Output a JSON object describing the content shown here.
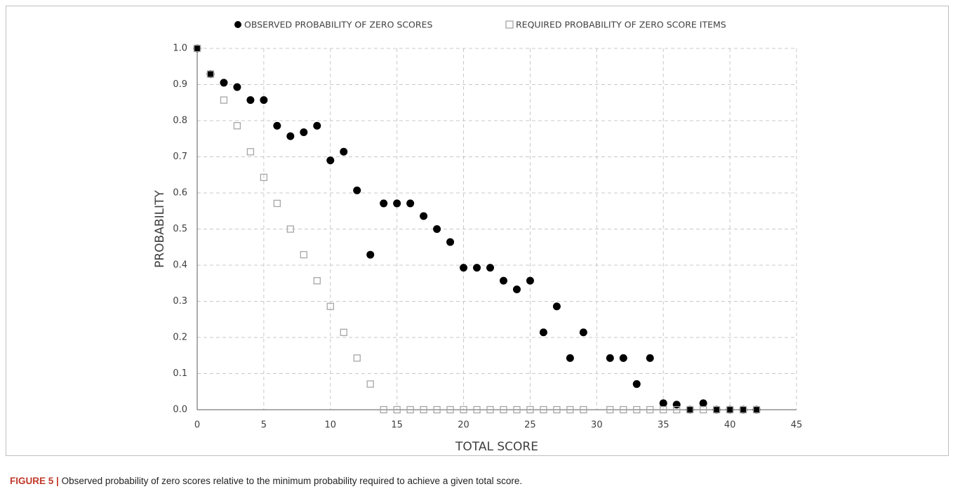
{
  "chart_data": {
    "type": "scatter",
    "x": [
      0,
      1,
      2,
      3,
      4,
      5,
      6,
      7,
      8,
      9,
      10,
      11,
      12,
      13,
      14,
      15,
      16,
      17,
      18,
      19,
      20,
      21,
      22,
      23,
      24,
      25,
      26,
      27,
      28,
      29,
      31,
      32,
      33,
      34,
      35,
      36,
      37,
      38,
      39,
      40,
      41,
      42
    ],
    "series": [
      {
        "name": "OBSERVED PROBABILITY OF ZERO SCORES",
        "color": "#000000",
        "marker": "circle",
        "values": [
          1.0,
          0.929,
          0.905,
          0.893,
          0.857,
          0.857,
          0.786,
          0.757,
          0.768,
          0.786,
          0.69,
          0.714,
          0.607,
          0.429,
          0.571,
          0.571,
          0.571,
          0.536,
          0.5,
          0.464,
          0.393,
          0.393,
          0.393,
          0.357,
          0.333,
          0.357,
          0.214,
          0.286,
          0.143,
          0.214,
          0.143,
          0.143,
          0.071,
          0.143,
          0.018,
          0.014,
          0,
          0.018,
          0,
          0,
          0,
          0
        ]
      },
      {
        "name": "REQUIRED PROBABILITY OF ZERO SCORE ITEMS",
        "color": "#a6a6a6",
        "marker": "square",
        "values": [
          1.0,
          0.929,
          0.857,
          0.786,
          0.714,
          0.643,
          0.571,
          0.5,
          0.429,
          0.357,
          0.286,
          0.214,
          0.143,
          0.071,
          0,
          0,
          0,
          0,
          0,
          0,
          0,
          0,
          0,
          0,
          0,
          0,
          0,
          0,
          0,
          0,
          0,
          0,
          0,
          0,
          0,
          0,
          0,
          0,
          0,
          0,
          0,
          0
        ]
      }
    ],
    "x_label": "TOTAL SCORE",
    "y_label": "PROBABILITY",
    "xlim": [
      0,
      45
    ],
    "xticks": [
      0,
      5,
      10,
      15,
      20,
      25,
      30,
      35,
      40,
      45
    ],
    "ylim": [
      0,
      1.0
    ],
    "yticks": [
      {
        "value": 0,
        "label": "0.0"
      },
      {
        "value": 0.1,
        "label": "0.1"
      },
      {
        "value": 0.2,
        "label": "0.2"
      },
      {
        "value": 0.3,
        "label": "0.3"
      },
      {
        "value": 0.4,
        "label": "0.4"
      },
      {
        "value": 0.5,
        "label": "0.5"
      },
      {
        "value": 0.6,
        "label": "0.6"
      },
      {
        "value": 0.7,
        "label": "0.7"
      },
      {
        "value": 0.8,
        "label": "0.8"
      },
      {
        "value": 0.9,
        "label": "0.9"
      },
      {
        "value": 1.0,
        "label": "1.0"
      }
    ],
    "grid": true,
    "legend": "top"
  },
  "caption": {
    "label": "FIGURE 5 |",
    "text": "Observed probability of zero scores relative to the minimum probability required to achieve a given total score."
  }
}
